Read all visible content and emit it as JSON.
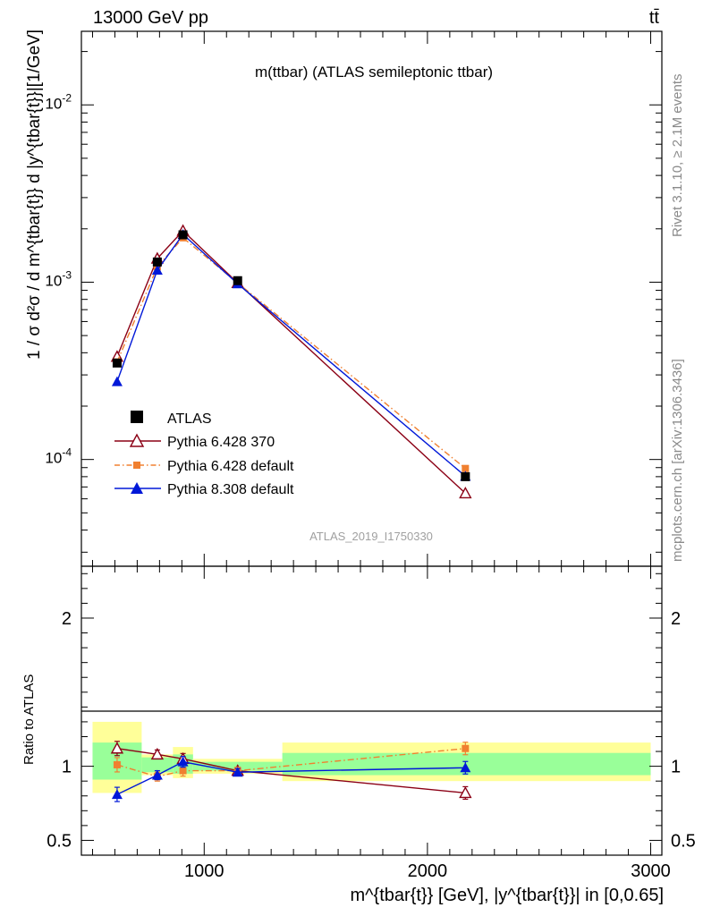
{
  "header": {
    "energy": "13000 GeV pp",
    "process": "tt̄"
  },
  "side_text": {
    "rivet": "Rivet 3.1.10, ≥ 2.1M events",
    "mcplots": "mcplots.cern.ch [arXiv:1306.3436]"
  },
  "chart_data": [
    {
      "type": "line",
      "title": "m(ttbar) (ATLAS semileptonic ttbar)",
      "watermark": "ATLAS_2019_I1750330",
      "ylabel": "1 / σ d²σ / d m^{tbar{t}} d |y^{tbar{t}}|[1/GeV]",
      "yscale": "log",
      "xlim": [
        450,
        3050
      ],
      "ylim": [
        2.5e-05,
        0.026
      ],
      "ytick_labels": [
        "10^-4",
        "10^-3",
        "10^-2"
      ],
      "legend_position": "center-left",
      "x": [
        610,
        790,
        905,
        1150,
        2170
      ],
      "series": [
        {
          "name": "ATLAS",
          "color": "#000000",
          "marker": "square",
          "values": [
            0.00035,
            0.0013,
            0.00185,
            0.00102,
            8e-05
          ]
        },
        {
          "name": "Pythia 6.428 370",
          "color": "#8b0015",
          "marker": "open-triangle",
          "values": [
            0.00038,
            0.00136,
            0.00195,
            0.00099,
            6.45e-05
          ]
        },
        {
          "name": "Pythia 6.428 default",
          "color": "#f08030",
          "marker": "small-square",
          "dash": "dashdot",
          "values": [
            0.000355,
            0.00122,
            0.00178,
            0.00099,
            8.9e-05
          ]
        },
        {
          "name": "Pythia 8.308 default",
          "color": "#0018d8",
          "marker": "triangle",
          "values": [
            0.000275,
            0.00117,
            0.00186,
            0.00098,
            8.05e-05
          ]
        }
      ]
    },
    {
      "type": "line",
      "ylabel": "Ratio to ATLAS",
      "xlabel": "m^{tbar{t}} [GeV], |y^{tbar{t}}| in [0,0.65]",
      "xlim": [
        450,
        3050
      ],
      "ylim": [
        0.4,
        2.35
      ],
      "ytick_labels": [
        "0.5",
        "1",
        "2"
      ],
      "xtick_labels": [
        "1000",
        "2000",
        "3000"
      ],
      "bands": [
        {
          "x_range": [
            500,
            720
          ],
          "inner": [
            0.91,
            1.16
          ],
          "outer": [
            0.82,
            1.3
          ]
        },
        {
          "x_range": [
            720,
            860
          ],
          "inner": [
            0.96,
            1.06
          ],
          "outer": [
            0.94,
            1.08
          ]
        },
        {
          "x_range": [
            860,
            950
          ],
          "inner": [
            0.95,
            1.08
          ],
          "outer": [
            0.92,
            1.13
          ]
        },
        {
          "x_range": [
            950,
            1350
          ],
          "inner": [
            0.97,
            1.03
          ],
          "outer": [
            0.95,
            1.05
          ]
        },
        {
          "x_range": [
            1350,
            3000
          ],
          "inner": [
            0.94,
            1.09
          ],
          "outer": [
            0.9,
            1.16
          ]
        }
      ],
      "x": [
        610,
        790,
        905,
        1150,
        2170
      ],
      "series": [
        {
          "name": "Pythia 6.428 370",
          "color": "#8b0015",
          "marker": "open-triangle",
          "values": [
            1.12,
            1.08,
            1.05,
            0.97,
            0.82
          ]
        },
        {
          "name": "Pythia 6.428 default",
          "color": "#f08030",
          "marker": "small-square",
          "dash": "dashdot",
          "values": [
            1.01,
            0.93,
            0.97,
            0.97,
            1.12
          ]
        },
        {
          "name": "Pythia 8.308 default",
          "color": "#0018d8",
          "marker": "triangle",
          "values": [
            0.81,
            0.94,
            1.03,
            0.96,
            0.99
          ]
        }
      ]
    }
  ]
}
